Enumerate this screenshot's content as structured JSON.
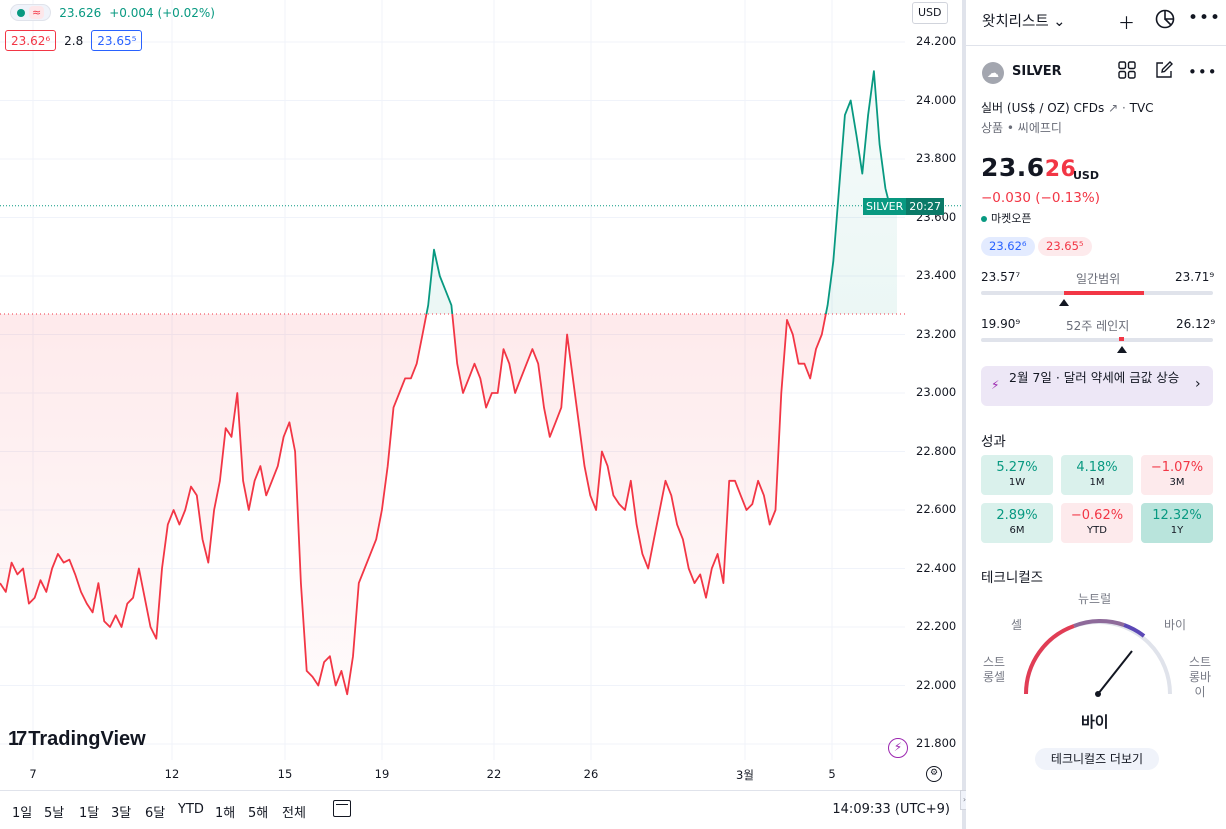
{
  "header": {
    "ohlc_price": "23.626",
    "ohlc_change": "+0.004 (+0.02%)",
    "bid": "23.62⁶",
    "spread": "2.8",
    "ask": "23.65⁵",
    "currency_button": "USD"
  },
  "chart_data": {
    "type": "area",
    "symbol": "SILVER",
    "y_ticks": [
      "24.200",
      "24.000",
      "23.800",
      "23.600",
      "23.400",
      "23.200",
      "23.000",
      "22.800",
      "22.600",
      "22.400",
      "22.200",
      "22.000",
      "21.800"
    ],
    "ylim": [
      21.8,
      24.2
    ],
    "x_ticks": [
      "7",
      "12",
      "15",
      "19",
      "22",
      "26",
      "3월",
      "5"
    ],
    "baseline": 23.27,
    "current_price_tag": "SILVER",
    "current_time_tag": "20:27",
    "series": [
      {
        "values": [
          22.35,
          22.32,
          22.42,
          22.38,
          22.4,
          22.28,
          22.3,
          22.36,
          22.32,
          22.4,
          22.45,
          22.42,
          22.43,
          22.38,
          22.32,
          22.28,
          22.25,
          22.35,
          22.22,
          22.2,
          22.24,
          22.2,
          22.28,
          22.3,
          22.4,
          22.3,
          22.2,
          22.16,
          22.4,
          22.55,
          22.6,
          22.55,
          22.6,
          22.68,
          22.65,
          22.5,
          22.42,
          22.6,
          22.7,
          22.88,
          22.85,
          23.0,
          22.7,
          22.6,
          22.7,
          22.75,
          22.65,
          22.7,
          22.75,
          22.85,
          22.9,
          22.8,
          22.35,
          22.05,
          22.03,
          22.0,
          22.08,
          22.1,
          22.0,
          22.05,
          21.97,
          22.1,
          22.35,
          22.4,
          22.45,
          22.5,
          22.6,
          22.75,
          22.95,
          23.0,
          23.05,
          23.05,
          23.1,
          23.2,
          23.3,
          23.49,
          23.4,
          23.35,
          23.3,
          23.1,
          23.0,
          23.05,
          23.1,
          23.05,
          22.95,
          23.0,
          23.0,
          23.15,
          23.1,
          23.0,
          23.05,
          23.1,
          23.15,
          23.1,
          22.95,
          22.85,
          22.9,
          22.95,
          23.2,
          23.05,
          22.9,
          22.75,
          22.65,
          22.6,
          22.8,
          22.75,
          22.65,
          22.62,
          22.6,
          22.7,
          22.55,
          22.45,
          22.4,
          22.5,
          22.6,
          22.7,
          22.65,
          22.55,
          22.5,
          22.4,
          22.35,
          22.38,
          22.3,
          22.4,
          22.45,
          22.35,
          22.7,
          22.7,
          22.65,
          22.6,
          22.62,
          22.7,
          22.65,
          22.55,
          22.6,
          23.0,
          23.25,
          23.2,
          23.1,
          23.1,
          23.05,
          23.15,
          23.2,
          23.3,
          23.45,
          23.7,
          23.95,
          24.0,
          23.88,
          23.75,
          23.95,
          24.1,
          23.85,
          23.7,
          23.62,
          23.64
        ]
      }
    ]
  },
  "logo_text": "TradingView",
  "timeframes": [
    "1일",
    "5날",
    "1달",
    "3달",
    "6달",
    "YTD",
    "1해",
    "5해",
    "전체"
  ],
  "clock": "14:09:33 (UTC+9)",
  "watchlist": {
    "title": "왓치리스트 ⌄"
  },
  "symbol": {
    "name": "SILVER",
    "description": "실버 (US$ / OZ) CFDs",
    "exchange": "TVC",
    "type_line": "상품 • 씨에프디",
    "price_main": "23.6",
    "price_tail": "26",
    "currency": "USD",
    "change": "−0.030 (−0.13%)",
    "market_status": "마켓오픈",
    "bid": "23.62⁶",
    "ask": "23.65⁵",
    "day_low": "23.57⁷",
    "day_label": "일간범위",
    "day_high": "23.71⁹",
    "week52_low": "19.90⁹",
    "week52_label": "52주 레인지",
    "week52_high": "26.12⁹",
    "news": "2월 7일 · 달러 약세에 금값 상승"
  },
  "performance": {
    "title": "성과",
    "items": [
      {
        "value": "5.27%",
        "label": "1W",
        "tone": "pos"
      },
      {
        "value": "4.18%",
        "label": "1M",
        "tone": "pos"
      },
      {
        "value": "−1.07%",
        "label": "3M",
        "tone": "neg"
      },
      {
        "value": "2.89%",
        "label": "6M",
        "tone": "pos"
      },
      {
        "value": "−0.62%",
        "label": "YTD",
        "tone": "neg"
      },
      {
        "value": "12.32%",
        "label": "1Y",
        "tone": "strong"
      }
    ]
  },
  "technicals": {
    "title": "테크니컬즈",
    "neutral": "뉴트럴",
    "sell": "셀",
    "buy": "바이",
    "strong_sell": "스트롱셀",
    "strong_buy": "스트롱바이",
    "verdict": "바이",
    "more_button": "테크니컬즈 더보기"
  },
  "colors": {
    "up": "#089981",
    "down": "#f23645",
    "accent": "#2962ff"
  }
}
